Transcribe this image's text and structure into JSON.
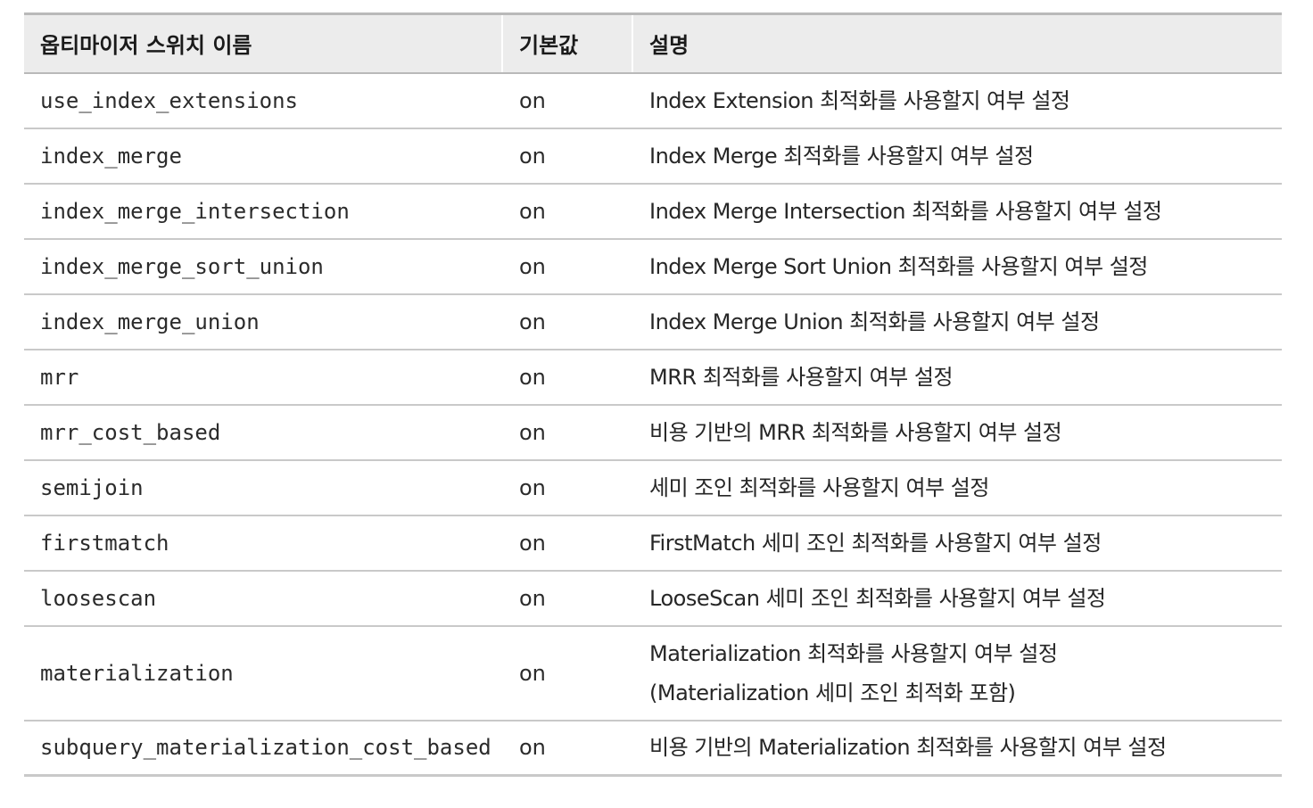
{
  "headers": {
    "name": "옵티마이저 스위치 이름",
    "default": "기본값",
    "description": "설명"
  },
  "rows": [
    {
      "name": "use_index_extensions",
      "default": "on",
      "desc": [
        "Index Extension 최적화를 사용할지 여부 설정"
      ]
    },
    {
      "name": "index_merge",
      "default": "on",
      "desc": [
        "Index Merge 최적화를 사용할지 여부 설정"
      ]
    },
    {
      "name": "index_merge_intersection",
      "default": "on",
      "desc": [
        "Index Merge Intersection 최적화를 사용할지 여부 설정"
      ]
    },
    {
      "name": "index_merge_sort_union",
      "default": "on",
      "desc": [
        "Index Merge Sort Union 최적화를 사용할지 여부 설정"
      ]
    },
    {
      "name": "index_merge_union",
      "default": "on",
      "desc": [
        "Index Merge Union 최적화를 사용할지 여부 설정"
      ]
    },
    {
      "name": "mrr",
      "default": "on",
      "desc": [
        "MRR 최적화를 사용할지 여부 설정"
      ]
    },
    {
      "name": "mrr_cost_based",
      "default": "on",
      "desc": [
        "비용 기반의 MRR 최적화를 사용할지 여부 설정"
      ]
    },
    {
      "name": "semijoin",
      "default": "on",
      "desc": [
        "세미 조인 최적화를 사용할지 여부 설정"
      ]
    },
    {
      "name": "firstmatch",
      "default": "on",
      "desc": [
        "FirstMatch 세미 조인 최적화를 사용할지 여부 설정"
      ]
    },
    {
      "name": "loosescan",
      "default": "on",
      "desc": [
        "LooseScan 세미 조인 최적화를 사용할지 여부 설정"
      ]
    },
    {
      "name": "materialization",
      "default": "on",
      "desc": [
        "Materialization 최적화를 사용할지 여부 설정",
        "(Materialization 세미 조인 최적화 포함)"
      ]
    },
    {
      "name": "subquery_materialization_cost_based",
      "default": "on",
      "desc": [
        "비용 기반의 Materialization 최적화를 사용할지 여부 설정"
      ]
    }
  ]
}
